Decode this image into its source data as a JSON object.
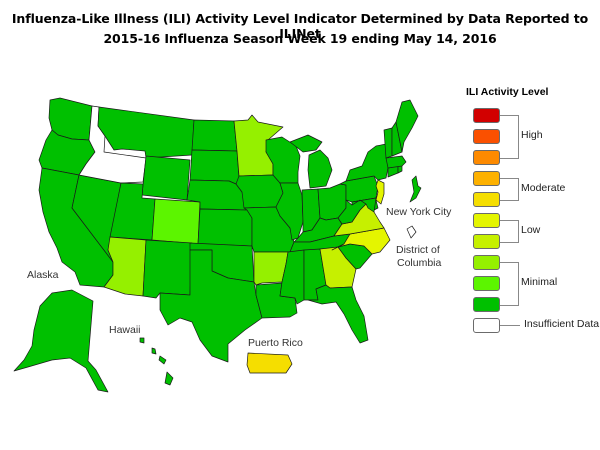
{
  "title": {
    "line1": "Influenza-Like Illness (ILI) Activity Level Indicator Determined by Data Reported to ILINet",
    "line2": "2015-16  Influenza Season Week  19 ending May 14, 2016"
  },
  "legend": {
    "title": "ILI Activity Level",
    "groups": [
      {
        "label": "High",
        "levels": [
          10,
          9,
          8
        ]
      },
      {
        "label": "Moderate",
        "levels": [
          7,
          6
        ]
      },
      {
        "label": "Low",
        "levels": [
          5,
          4
        ]
      },
      {
        "label": "Minimal",
        "levels": [
          3,
          2,
          1
        ]
      },
      {
        "label": "Insufficient Data",
        "levels": [
          0
        ]
      }
    ],
    "colors": {
      "10": "#d20000",
      "9": "#fa5000",
      "8": "#fd8a00",
      "7": "#fdb100",
      "6": "#f5de00",
      "5": "#e4f500",
      "4": "#c6f000",
      "3": "#95f000",
      "2": "#5cf500",
      "1": "#00c000",
      "0": "#ffffff"
    }
  },
  "map_labels": {
    "new_york_city": "New York City",
    "dc_line1": "District of",
    "dc_line2": "Columbia",
    "alaska": "Alaska",
    "hawaii": "Hawaii",
    "puerto_rico": "Puerto Rico"
  },
  "states": {
    "WA": 1,
    "OR": 1,
    "CA": 1,
    "NV": 1,
    "ID": 0,
    "MT": 1,
    "WY": 1,
    "UT": 1,
    "CO": 2,
    "AZ": 3,
    "NM": 1,
    "ND": 1,
    "SD": 1,
    "NE": 1,
    "KS": 1,
    "OK": 1,
    "TX": 1,
    "MN": 3,
    "IA": 1,
    "MO": 1,
    "AR": 3,
    "LA": 1,
    "WI": 1,
    "IL": 1,
    "MI": 1,
    "IN": 1,
    "OH": 1,
    "KY": 1,
    "TN": 1,
    "MS": 1,
    "AL": 1,
    "GA": 4,
    "FL": 1,
    "SC": 1,
    "NC": 5,
    "VA": 4,
    "WV": 1,
    "PA": 1,
    "NY": 1,
    "NJ": 5,
    "DE": 1,
    "MD": 1,
    "CT": 1,
    "RI": 1,
    "MA": 1,
    "VT": 1,
    "NH": 1,
    "ME": 1,
    "AK": 1,
    "HI": 1,
    "PR": 6,
    "NYC": 1,
    "DC": 0
  }
}
